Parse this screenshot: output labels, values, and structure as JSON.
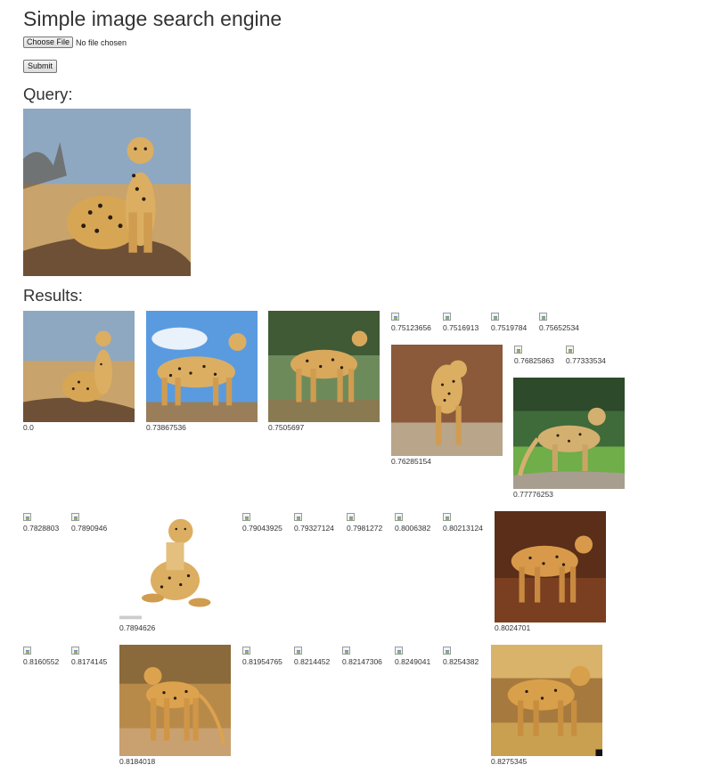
{
  "page": {
    "title": "Simple image search engine",
    "choose_file_label": "Choose File",
    "no_file_text": "No file chosen",
    "submit_label": "Submit",
    "query_heading": "Query:",
    "results_heading": "Results:"
  },
  "query_image": {
    "alt": "query",
    "subject": "sitting cheetah"
  },
  "results": [
    {
      "score": "0.0",
      "shown": true
    },
    {
      "score": "0.73867536",
      "shown": true
    },
    {
      "score": "0.7505697",
      "shown": true
    },
    {
      "score": "0.75123656",
      "shown": false
    },
    {
      "score": "0.7516913",
      "shown": false
    },
    {
      "score": "0.7519784",
      "shown": false
    },
    {
      "score": "0.75652534",
      "shown": false
    },
    {
      "score": "0.76285154",
      "shown": true
    },
    {
      "score": "0.76825863",
      "shown": false
    },
    {
      "score": "0.77333534",
      "shown": false
    },
    {
      "score": "0.77776253",
      "shown": true
    },
    {
      "score": "0.7828803",
      "shown": false
    },
    {
      "score": "0.7890946",
      "shown": false
    },
    {
      "score": "0.7894626",
      "shown": true
    },
    {
      "score": "0.79043925",
      "shown": false
    },
    {
      "score": "0.79327124",
      "shown": false
    },
    {
      "score": "0.7981272",
      "shown": false
    },
    {
      "score": "0.8006382",
      "shown": false
    },
    {
      "score": "0.80213124",
      "shown": false
    },
    {
      "score": "0.8024701",
      "shown": true
    },
    {
      "score": "0.8160552",
      "shown": false
    },
    {
      "score": "0.8174145",
      "shown": false
    },
    {
      "score": "0.8184018",
      "shown": true
    },
    {
      "score": "0.81954765",
      "shown": false
    },
    {
      "score": "0.8214452",
      "shown": false
    },
    {
      "score": "0.82147306",
      "shown": false
    },
    {
      "score": "0.8249041",
      "shown": false
    },
    {
      "score": "0.8254382",
      "shown": false
    },
    {
      "score": "0.8275345",
      "shown": true
    }
  ],
  "colors": {
    "sky": "#8fa9c4",
    "sky_bright": "#5a9be0",
    "savanna": "#c9a46a",
    "grass": "#5f8f3a",
    "dark_earth": "#6b3d22",
    "fur": "#d9a85a",
    "spot": "#2a1d12"
  }
}
